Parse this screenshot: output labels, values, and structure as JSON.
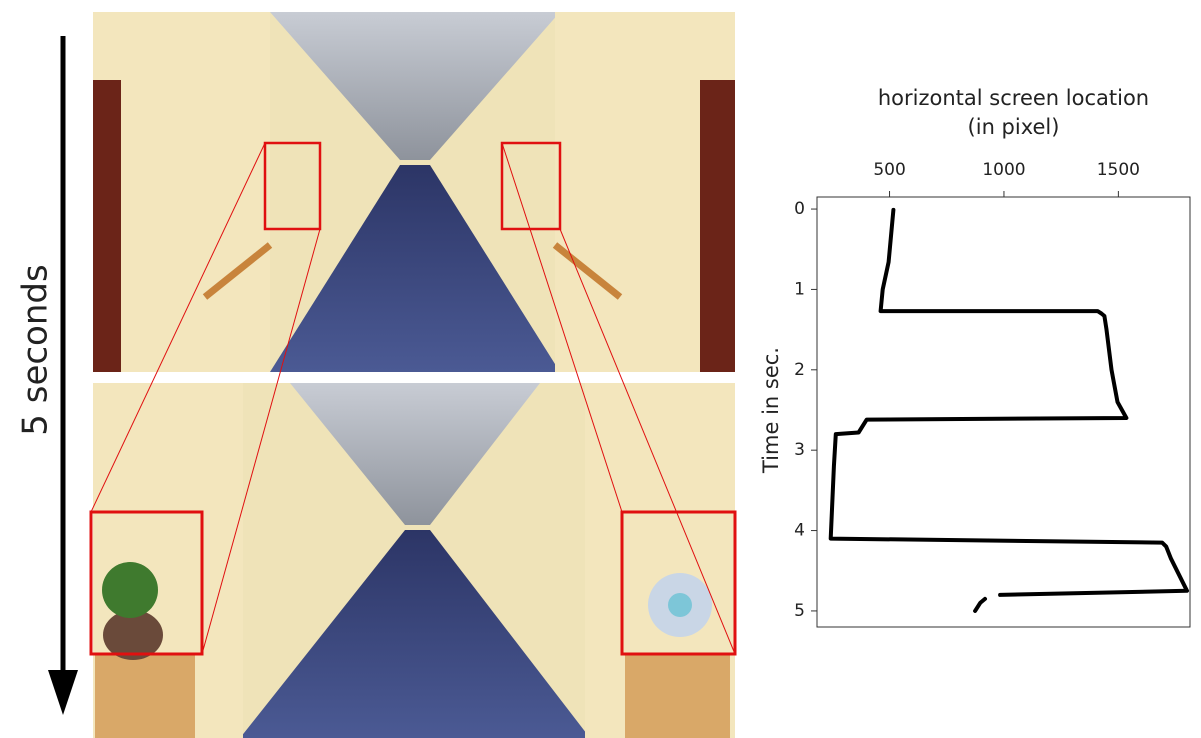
{
  "figure": {
    "time_label": "5 seconds"
  },
  "chart_data": {
    "type": "line",
    "xlabel": [
      "horizontal screen location",
      "(in pixel)"
    ],
    "ylabel": "Time in sec.",
    "x": [
      517,
      496,
      470,
      461,
      1409,
      1426,
      1439,
      1448,
      1470,
      1496,
      1535,
      400,
      365,
      265,
      257,
      243,
      1691,
      1709,
      1730,
      1800,
      983,
      null,
      917,
      896,
      874
    ],
    "values": [
      0.01,
      0.66,
      1.0,
      1.27,
      1.27,
      1.3,
      1.33,
      1.5,
      2.0,
      2.4,
      2.6,
      2.62,
      2.78,
      2.8,
      3.2,
      4.1,
      4.15,
      4.2,
      4.35,
      4.75,
      4.8,
      null,
      4.85,
      4.9,
      5.0
    ],
    "color": "#000000",
    "xlim": [
      183,
      1813
    ],
    "xticks": [
      500,
      1000,
      1500
    ],
    "ylim": [
      -0.15,
      5.2
    ],
    "yticks": [
      0,
      1,
      2,
      3,
      4,
      5
    ],
    "y_inverted": true,
    "x_axis_position": "top"
  }
}
